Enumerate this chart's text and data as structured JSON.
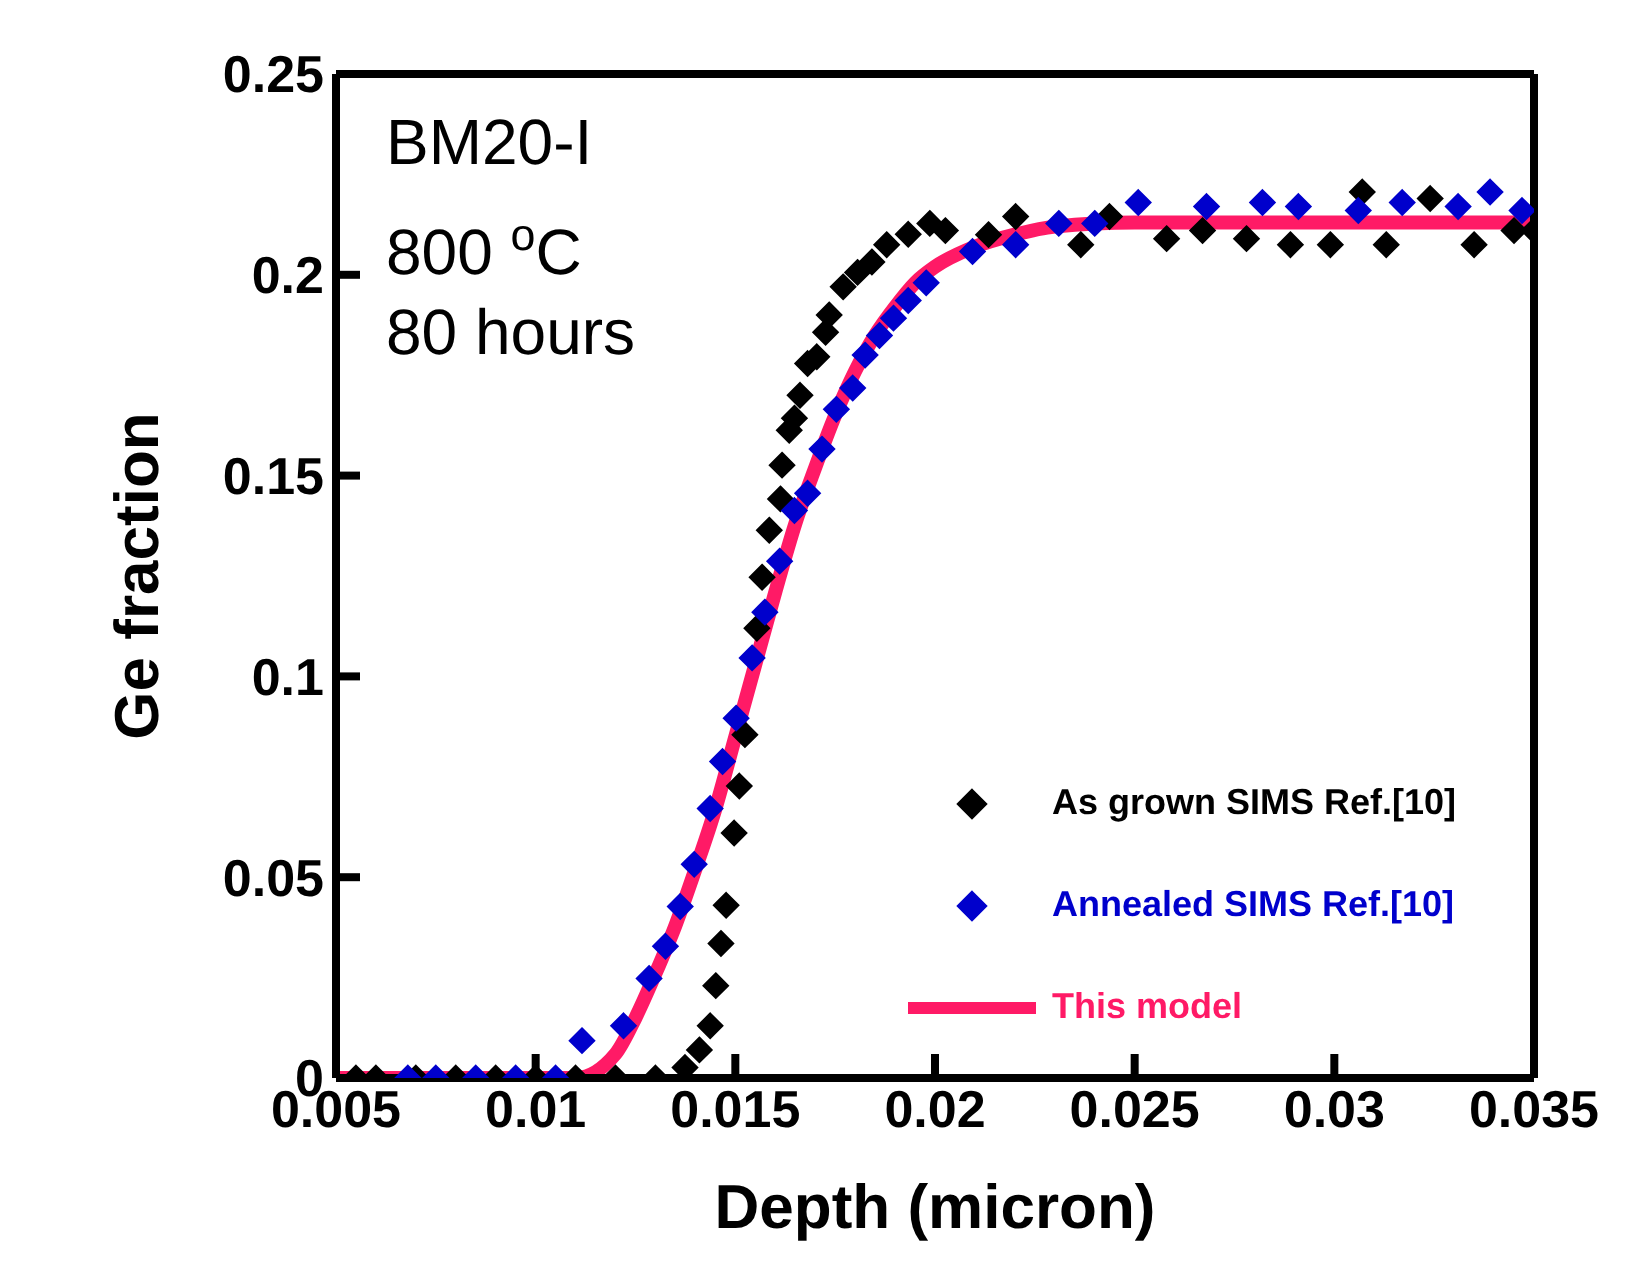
{
  "chart_data": {
    "type": "scatter",
    "xlabel": "Depth (micron)",
    "ylabel": "Ge fraction",
    "xlim": [
      0.005,
      0.035
    ],
    "xticks": [
      0.005,
      0.01,
      0.015,
      0.02,
      0.025,
      0.03,
      0.035
    ],
    "ylim": [
      0,
      0.25
    ],
    "yticks": [
      0,
      0.05,
      0.1,
      0.15,
      0.2,
      0.25
    ],
    "grid": false,
    "legend": "bottom right",
    "annotations": [
      "BM20-I",
      "800 $^{o}$C",
      "80 hours"
    ],
    "series": [
      {
        "name": "As grown SIMS Ref.[10]",
        "marker": "diamond",
        "color": "#000000",
        "x": [
          0.0055,
          0.006,
          0.007,
          0.008,
          0.009,
          0.01,
          0.011,
          0.012,
          0.013,
          0.01374,
          0.0141,
          0.01437,
          0.01451,
          0.01464,
          0.01477,
          0.01497,
          0.0151,
          0.01524,
          0.01554,
          0.01567,
          0.01585,
          0.01613,
          0.01617,
          0.01635,
          0.01648,
          0.01662,
          0.01681,
          0.01704,
          0.01726,
          0.01735,
          0.0177,
          0.01806,
          0.01842,
          0.01879,
          0.01933,
          0.01987,
          0.02026,
          0.02134,
          0.02202,
          0.02365,
          0.02437,
          0.0258,
          0.0267,
          0.0278,
          0.0289,
          0.0299,
          0.0307,
          0.0313,
          0.0324,
          0.0335,
          0.0345,
          0.035
        ],
        "values": [
          0,
          0,
          0,
          0,
          0,
          0,
          0,
          0,
          0,
          0.0026,
          0.007,
          0.013,
          0.023,
          0.0335,
          0.043,
          0.061,
          0.0727,
          0.0855,
          0.112,
          0.1247,
          0.1364,
          0.1442,
          0.1526,
          0.1613,
          0.1643,
          0.17,
          0.1779,
          0.1796,
          0.1857,
          0.19,
          0.197,
          0.2006,
          0.2032,
          0.2075,
          0.2101,
          0.2128,
          0.211,
          0.21,
          0.2145,
          0.2075,
          0.2145,
          0.209,
          0.211,
          0.209,
          0.2075,
          0.2075,
          0.2206,
          0.2075,
          0.219,
          0.2075,
          0.211,
          0.211
        ]
      },
      {
        "name": "Annealed SIMS Ref.[10]",
        "marker": "diamond",
        "color": "#0000cc",
        "x": [
          0.0068,
          0.0075,
          0.0085,
          0.0095,
          0.0105,
          0.01116,
          0.0122,
          0.01284,
          0.01325,
          0.01362,
          0.01397,
          0.01437,
          0.01468,
          0.01502,
          0.01542,
          0.01574,
          0.01611,
          0.01648,
          0.01681,
          0.01717,
          0.01753,
          0.01794,
          0.01825,
          0.01861,
          0.01896,
          0.01933,
          0.01978,
          0.02094,
          0.02202,
          0.0231,
          0.024,
          0.02509,
          0.0268,
          0.0282,
          0.0291,
          0.0306,
          0.0317,
          0.0331,
          0.0339,
          0.0347
        ],
        "values": [
          0,
          0,
          0,
          0,
          0,
          0.0093,
          0.013,
          0.0248,
          0.0328,
          0.0427,
          0.0532,
          0.0671,
          0.0788,
          0.0896,
          0.1046,
          0.116,
          0.1287,
          0.1413,
          0.1456,
          0.1566,
          0.1665,
          0.1718,
          0.18,
          0.1849,
          0.1892,
          0.1936,
          0.198,
          0.2058,
          0.2075,
          0.2128,
          0.2128,
          0.218,
          0.217,
          0.218,
          0.217,
          0.216,
          0.218,
          0.217,
          0.2206,
          0.216
        ]
      },
      {
        "name": "This model",
        "type": "line",
        "marker": "none",
        "line_style": "solid",
        "color": "#ff1a66",
        "x": [
          0.005,
          0.011,
          0.012,
          0.0125,
          0.013,
          0.0135,
          0.014,
          0.0145,
          0.015,
          0.0155,
          0.016,
          0.0165,
          0.017,
          0.0175,
          0.018,
          0.0185,
          0.019,
          0.0195,
          0.02,
          0.021,
          0.022,
          0.023,
          0.025,
          0.03,
          0.035
        ],
        "values": [
          0,
          0,
          0.006,
          0.015,
          0.026,
          0.038,
          0.052,
          0.067,
          0.085,
          0.103,
          0.121,
          0.138,
          0.152,
          0.165,
          0.176,
          0.185,
          0.192,
          0.198,
          0.202,
          0.207,
          0.21,
          0.212,
          0.213,
          0.213,
          0.213
        ]
      }
    ]
  }
}
